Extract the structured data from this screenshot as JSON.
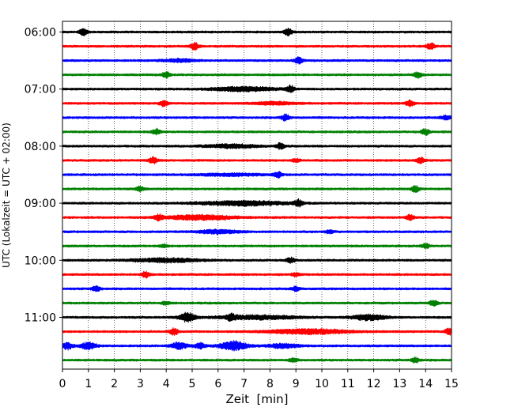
{
  "chart_data": {
    "type": "line",
    "title": "",
    "xlabel": "Zeit  [min]",
    "ylabel": "UTC (Lokalzeit = UTC + 02:00)",
    "xlim": [
      0,
      15
    ],
    "x_ticks": [
      "0",
      "1",
      "2",
      "3",
      "4",
      "5",
      "6",
      "7",
      "8",
      "9",
      "10",
      "11",
      "12",
      "13",
      "14",
      "15"
    ],
    "y_ticks": [
      "06:00",
      "07:00",
      "08:00",
      "09:00",
      "10:00",
      "11:00"
    ],
    "grid": "vertical dotted",
    "row_interval_minutes": 15,
    "colors": [
      "#000000",
      "#ff0000",
      "#0000ff",
      "#008000"
    ],
    "traces": [
      {
        "start": "06:00",
        "color": "#000000",
        "events": [
          [
            0.8,
            0.55,
            0.15
          ],
          [
            8.7,
            0.6,
            0.15
          ]
        ]
      },
      {
        "start": "06:15",
        "color": "#ff0000",
        "events": [
          [
            5.1,
            0.6,
            0.15
          ],
          [
            14.2,
            0.55,
            0.15
          ]
        ]
      },
      {
        "start": "06:30",
        "color": "#0000ff",
        "events": [
          [
            4.5,
            0.25,
            0.6
          ],
          [
            9.1,
            0.55,
            0.15
          ]
        ]
      },
      {
        "start": "06:45",
        "color": "#008000",
        "events": [
          [
            4.0,
            0.5,
            0.15
          ],
          [
            13.7,
            0.5,
            0.15
          ]
        ]
      },
      {
        "start": "07:00",
        "color": "#000000",
        "events": [
          [
            7.0,
            0.35,
            1.2
          ],
          [
            8.8,
            0.55,
            0.15
          ]
        ]
      },
      {
        "start": "07:15",
        "color": "#ff0000",
        "events": [
          [
            3.9,
            0.5,
            0.15
          ],
          [
            8.2,
            0.25,
            0.8
          ],
          [
            13.4,
            0.55,
            0.15
          ]
        ]
      },
      {
        "start": "07:30",
        "color": "#0000ff",
        "events": [
          [
            8.6,
            0.55,
            0.15
          ],
          [
            14.8,
            0.35,
            0.2
          ]
        ]
      },
      {
        "start": "07:45",
        "color": "#008000",
        "events": [
          [
            3.6,
            0.5,
            0.15
          ],
          [
            14.0,
            0.55,
            0.15
          ]
        ]
      },
      {
        "start": "08:00",
        "color": "#000000",
        "events": [
          [
            6.5,
            0.3,
            1.0
          ],
          [
            8.4,
            0.5,
            0.15
          ]
        ]
      },
      {
        "start": "08:15",
        "color": "#ff0000",
        "events": [
          [
            3.5,
            0.55,
            0.15
          ],
          [
            9.0,
            0.3,
            0.15
          ],
          [
            13.8,
            0.5,
            0.15
          ]
        ]
      },
      {
        "start": "08:30",
        "color": "#0000ff",
        "events": [
          [
            6.5,
            0.2,
            1.2
          ],
          [
            8.3,
            0.5,
            0.15
          ]
        ]
      },
      {
        "start": "08:45",
        "color": "#008000",
        "events": [
          [
            3.0,
            0.4,
            0.15
          ],
          [
            13.6,
            0.55,
            0.15
          ]
        ]
      },
      {
        "start": "09:00",
        "color": "#000000",
        "events": [
          [
            7.0,
            0.4,
            1.6
          ],
          [
            9.1,
            0.55,
            0.15
          ]
        ]
      },
      {
        "start": "09:15",
        "color": "#ff0000",
        "events": [
          [
            5.3,
            0.4,
            1.3
          ],
          [
            3.7,
            0.45,
            0.15
          ],
          [
            13.4,
            0.5,
            0.15
          ]
        ]
      },
      {
        "start": "09:30",
        "color": "#0000ff",
        "events": [
          [
            6.0,
            0.3,
            0.8
          ],
          [
            10.3,
            0.3,
            0.15
          ]
        ]
      },
      {
        "start": "09:45",
        "color": "#008000",
        "events": [
          [
            3.9,
            0.3,
            0.15
          ],
          [
            14.0,
            0.4,
            0.15
          ]
        ]
      },
      {
        "start": "10:00",
        "color": "#000000",
        "events": [
          [
            4.0,
            0.35,
            1.2
          ],
          [
            8.8,
            0.45,
            0.15
          ]
        ]
      },
      {
        "start": "10:15",
        "color": "#ff0000",
        "events": [
          [
            3.2,
            0.55,
            0.15
          ],
          [
            9.0,
            0.3,
            0.15
          ]
        ]
      },
      {
        "start": "10:30",
        "color": "#0000ff",
        "events": [
          [
            1.3,
            0.5,
            0.15
          ],
          [
            9.0,
            0.4,
            0.15
          ]
        ]
      },
      {
        "start": "10:45",
        "color": "#008000",
        "events": [
          [
            4.0,
            0.3,
            0.15
          ],
          [
            14.3,
            0.5,
            0.15
          ]
        ]
      },
      {
        "start": "11:00",
        "color": "#000000",
        "events": [
          [
            4.8,
            0.8,
            0.3
          ],
          [
            7.5,
            0.35,
            1.5
          ],
          [
            11.8,
            0.5,
            0.6
          ],
          [
            6.5,
            0.4,
            0.15
          ]
        ]
      },
      {
        "start": "11:15",
        "color": "#ff0000",
        "events": [
          [
            4.3,
            0.6,
            0.15
          ],
          [
            9.5,
            0.4,
            1.5
          ],
          [
            14.9,
            0.5,
            0.15
          ]
        ]
      },
      {
        "start": "11:30",
        "color": "#0000ff",
        "events": [
          [
            0.2,
            0.6,
            0.2
          ],
          [
            1.0,
            0.6,
            0.3
          ],
          [
            4.5,
            0.55,
            0.3
          ],
          [
            5.3,
            0.5,
            0.2
          ],
          [
            6.6,
            0.8,
            0.5
          ],
          [
            8.5,
            0.35,
            0.6
          ]
        ]
      },
      {
        "start": "11:45",
        "color": "#008000",
        "events": [
          [
            8.9,
            0.35,
            0.15
          ],
          [
            13.6,
            0.45,
            0.15
          ]
        ]
      }
    ]
  }
}
